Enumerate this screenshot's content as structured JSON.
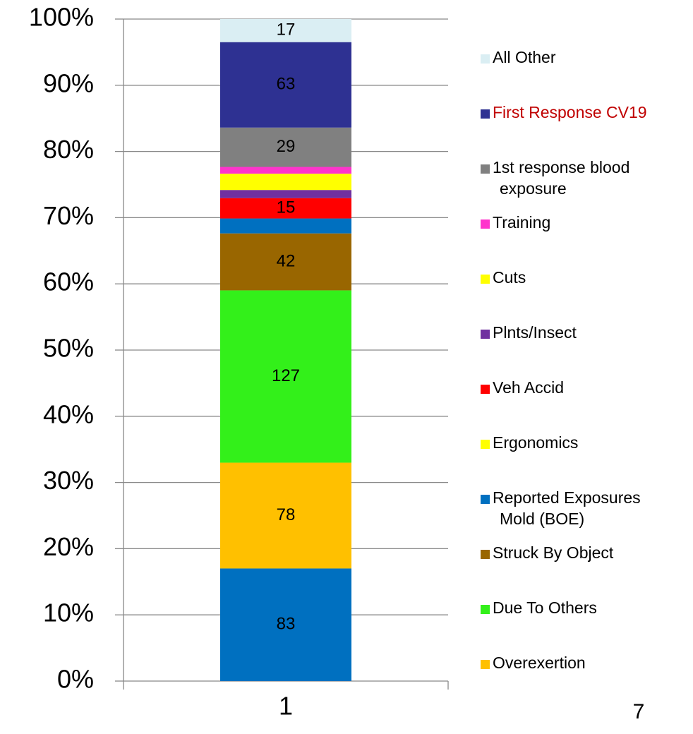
{
  "chart_data": {
    "type": "bar",
    "stacking": "percent",
    "categories": [
      "1"
    ],
    "ylim": [
      0,
      100
    ],
    "yticks": [
      {
        "value": 0,
        "label": "0%"
      },
      {
        "value": 10,
        "label": "10%"
      },
      {
        "value": 20,
        "label": "20%"
      },
      {
        "value": 30,
        "label": "30%"
      },
      {
        "value": 40,
        "label": "40%"
      },
      {
        "value": 50,
        "label": "50%"
      },
      {
        "value": 60,
        "label": "60%"
      },
      {
        "value": 70,
        "label": "70%"
      },
      {
        "value": 80,
        "label": "80%"
      },
      {
        "value": 90,
        "label": "90%"
      },
      {
        "value": 100,
        "label": "100%"
      }
    ],
    "grid": true,
    "legend": "right",
    "series": [
      {
        "name": null,
        "color": "#0070c0",
        "values": [
          83
        ]
      },
      {
        "name": "Overexertion",
        "color": "#ffc000",
        "values": [
          78
        ]
      },
      {
        "name": "Due To Others",
        "color": "#33f01a",
        "values": [
          127
        ]
      },
      {
        "name": "Struck By Object",
        "color": "#996600",
        "values": [
          42
        ]
      },
      {
        "name": "Reported Exposures Mold (BOE)",
        "color": "#0070c0",
        "values": [
          11
        ]
      },
      {
        "name": "Ergonomics",
        "color": "#ffff00",
        "values": [
          0
        ]
      },
      {
        "name": "Veh Accid",
        "color": "#ff0000",
        "values": [
          15
        ]
      },
      {
        "name": "Plnts/Insect",
        "color": "#7030a0",
        "values": [
          6
        ]
      },
      {
        "name": "Cuts",
        "color": "#ffff00",
        "values": [
          12
        ]
      },
      {
        "name": "Training",
        "color": "#ff33cc",
        "values": [
          5
        ]
      },
      {
        "name": "1st response blood exposure",
        "color": "#808080",
        "values": [
          29
        ]
      },
      {
        "name": "First Response CV19",
        "color": "#2e3192",
        "values": [
          63
        ],
        "legend_text_color": "#c00000"
      },
      {
        "name": "All Other",
        "color": "#daeef3",
        "values": [
          17
        ]
      }
    ]
  },
  "page_number": "7"
}
